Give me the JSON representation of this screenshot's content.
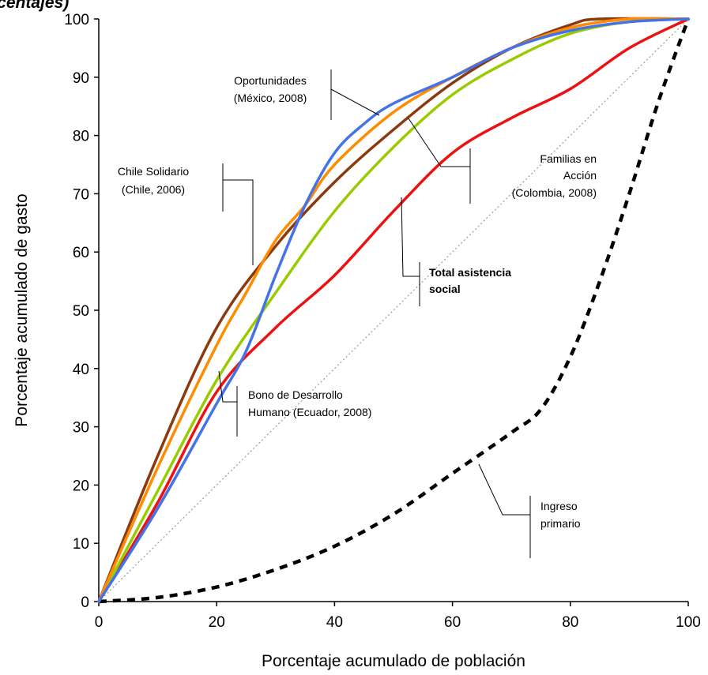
{
  "chart_data": {
    "type": "line",
    "title": "rcentajes)",
    "xlabel": "Porcentaje acumulado de población",
    "ylabel": "Porcentaje acumulado de gasto",
    "xlim": [
      0,
      100
    ],
    "ylim": [
      0,
      100
    ],
    "x_ticks": [
      "0",
      "20",
      "40",
      "60",
      "80",
      "100"
    ],
    "y_ticks": [
      "0",
      "10",
      "20",
      "30",
      "40",
      "50",
      "60",
      "70",
      "80",
      "90",
      "100"
    ],
    "grid": false,
    "legend": "none",
    "series": [
      {
        "name": "Oportunidades (México, 2008)",
        "color": "#4472E8",
        "style": "solid",
        "points": [
          [
            0,
            0
          ],
          [
            10,
            16
          ],
          [
            20,
            34
          ],
          [
            25,
            43
          ],
          [
            30,
            56
          ],
          [
            35,
            68
          ],
          [
            40,
            77
          ],
          [
            45,
            82
          ],
          [
            50,
            85.5
          ],
          [
            60,
            90
          ],
          [
            70,
            95
          ],
          [
            80,
            98
          ],
          [
            90,
            99.5
          ],
          [
            100,
            100
          ]
        ]
      },
      {
        "name": "Chile Solidario (Chile, 2006)",
        "color": "#FF8C00",
        "style": "solid",
        "points": [
          [
            0,
            0
          ],
          [
            10,
            23
          ],
          [
            20,
            44
          ],
          [
            25,
            53
          ],
          [
            30,
            62
          ],
          [
            35,
            68
          ],
          [
            40,
            75
          ],
          [
            50,
            84
          ],
          [
            60,
            90
          ],
          [
            70,
            95
          ],
          [
            80,
            98.5
          ],
          [
            90,
            100
          ],
          [
            100,
            100
          ]
        ]
      },
      {
        "name": "Familias en Acción (Colombia, 2008)",
        "color": "#99CC00",
        "style": "solid",
        "points": [
          [
            0,
            0
          ],
          [
            10,
            19
          ],
          [
            20,
            38
          ],
          [
            30,
            53
          ],
          [
            40,
            67
          ],
          [
            50,
            78
          ],
          [
            60,
            87
          ],
          [
            70,
            93
          ],
          [
            80,
            97.5
          ],
          [
            90,
            99.5
          ],
          [
            100,
            100
          ]
        ]
      },
      {
        "name": "Total asistencia social",
        "color": "#8B3A0F",
        "style": "solid",
        "points": [
          [
            0,
            0
          ],
          [
            10,
            25
          ],
          [
            20,
            47
          ],
          [
            30,
            61
          ],
          [
            40,
            72
          ],
          [
            50,
            81
          ],
          [
            60,
            89
          ],
          [
            70,
            95
          ],
          [
            80,
            99
          ],
          [
            85,
            100
          ],
          [
            100,
            100
          ]
        ]
      },
      {
        "name": "Bono de Desarrollo Humano (Ecuador, 2008)",
        "color": "#EE1111",
        "style": "solid",
        "points": [
          [
            0,
            0
          ],
          [
            10,
            17
          ],
          [
            20,
            36
          ],
          [
            30,
            47
          ],
          [
            40,
            56
          ],
          [
            50,
            67
          ],
          [
            60,
            77
          ],
          [
            70,
            83
          ],
          [
            80,
            88
          ],
          [
            90,
            95
          ],
          [
            100,
            100
          ]
        ]
      },
      {
        "name": "Ingreso primario",
        "color": "#000000",
        "style": "dashed",
        "points": [
          [
            0,
            0
          ],
          [
            10,
            0.7
          ],
          [
            20,
            2.5
          ],
          [
            30,
            5.5
          ],
          [
            40,
            9.5
          ],
          [
            50,
            15
          ],
          [
            60,
            22
          ],
          [
            70,
            29
          ],
          [
            75,
            33
          ],
          [
            80,
            42
          ],
          [
            85,
            55
          ],
          [
            90,
            70
          ],
          [
            95,
            86
          ],
          [
            100,
            100
          ]
        ]
      },
      {
        "name": "",
        "color": "#999999",
        "style": "dotted",
        "points": [
          [
            0,
            0
          ],
          [
            100,
            100
          ]
        ]
      }
    ],
    "annotations": [
      {
        "lines": [
          "Oportunidades",
          "(México, 2008)"
        ],
        "bold": false
      },
      {
        "lines": [
          "Chile Solidario",
          "(Chile, 2006)"
        ],
        "bold": false
      },
      {
        "lines": [
          "Familias en",
          "Acción",
          "(Colombia, 2008)"
        ],
        "bold": false
      },
      {
        "lines": [
          "Total asistencia",
          "social"
        ],
        "bold": true
      },
      {
        "lines": [
          "Bono de Desarrollo",
          "Humano (Ecuador, 2008)"
        ],
        "bold": false
      },
      {
        "lines": [
          "Ingreso",
          "primario"
        ],
        "bold": false
      }
    ]
  }
}
